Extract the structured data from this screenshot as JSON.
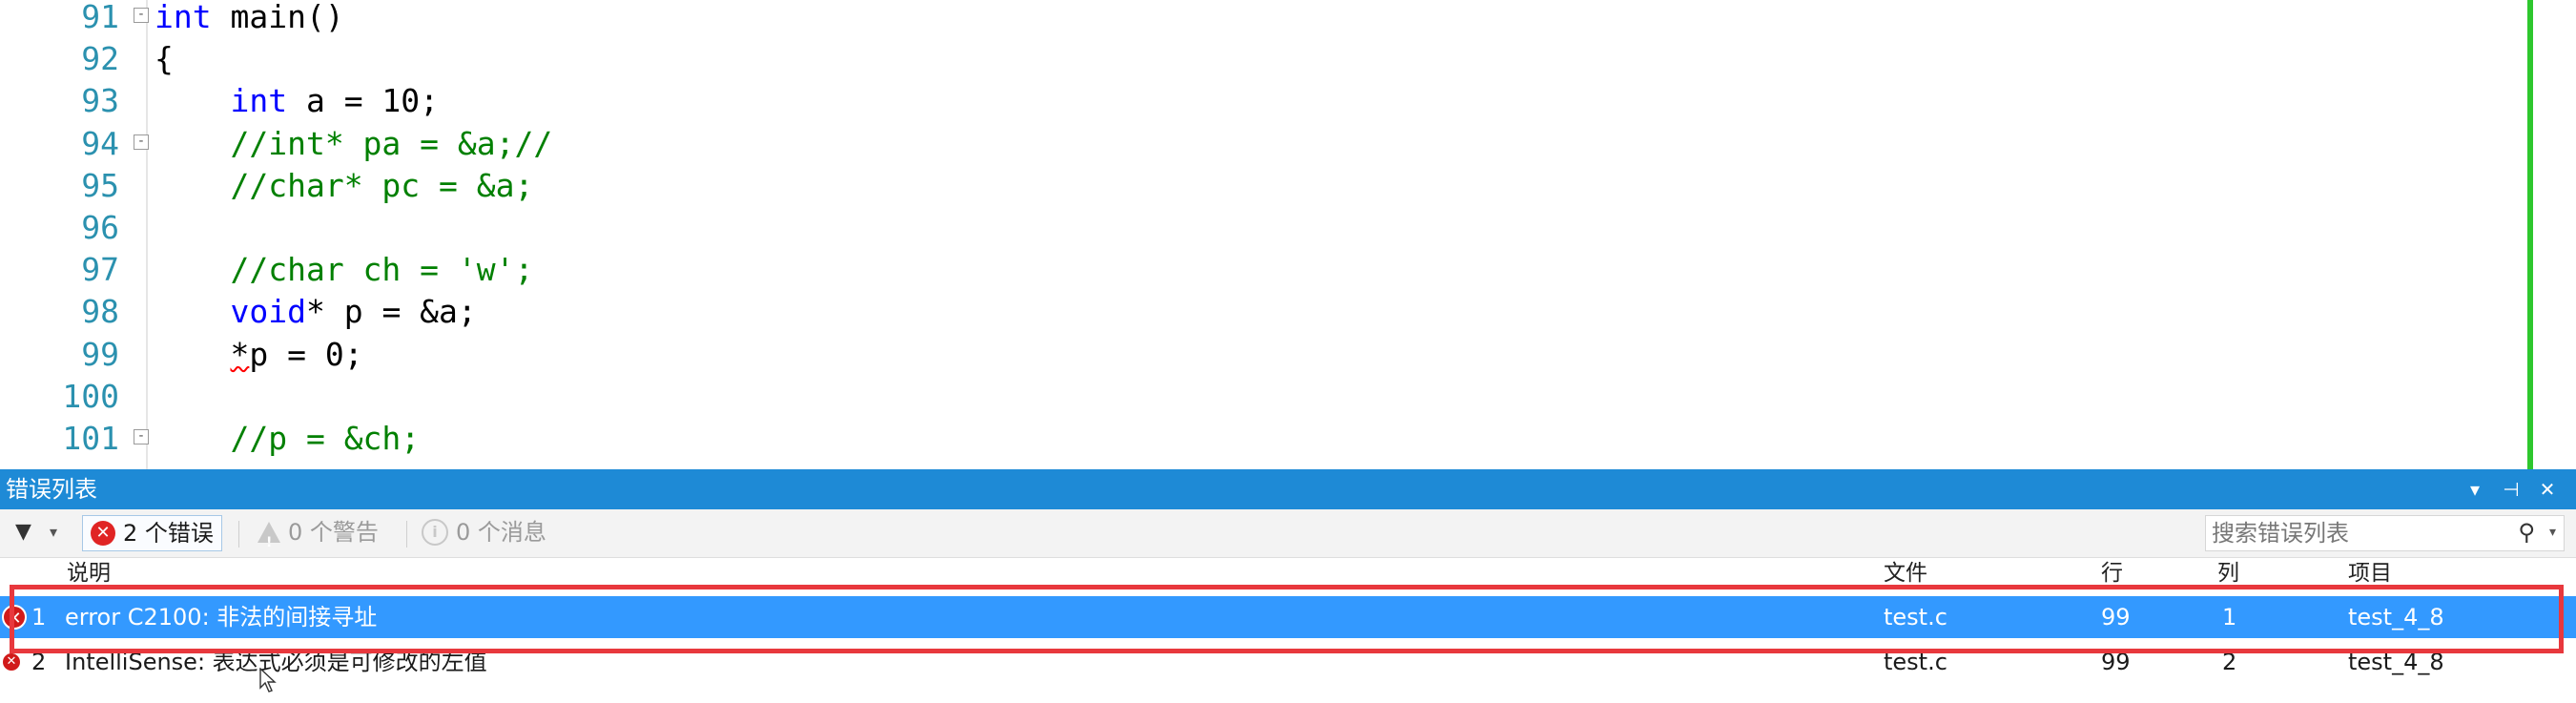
{
  "editor": {
    "lines": [
      {
        "n": "91",
        "fold": "-",
        "parts": [
          {
            "t": "int",
            "c": "kw"
          },
          {
            "t": " main()",
            "c": ""
          }
        ]
      },
      {
        "n": "92",
        "fold": "",
        "parts": [
          {
            "t": "{",
            "c": ""
          }
        ]
      },
      {
        "n": "93",
        "fold": "",
        "parts": [
          {
            "t": "    ",
            "c": ""
          },
          {
            "t": "int",
            "c": "kw"
          },
          {
            "t": " a = 10;",
            "c": ""
          }
        ]
      },
      {
        "n": "94",
        "fold": "-",
        "parts": [
          {
            "t": "    ",
            "c": ""
          },
          {
            "t": "//int* pa = &a;//",
            "c": "cm"
          }
        ]
      },
      {
        "n": "95",
        "fold": "",
        "parts": [
          {
            "t": "    ",
            "c": ""
          },
          {
            "t": "//char* pc = &a;",
            "c": "cm"
          }
        ]
      },
      {
        "n": "96",
        "fold": "",
        "parts": []
      },
      {
        "n": "97",
        "fold": "",
        "parts": [
          {
            "t": "    ",
            "c": ""
          },
          {
            "t": "//char ch = 'w';",
            "c": "cm"
          }
        ]
      },
      {
        "n": "98",
        "fold": "",
        "parts": [
          {
            "t": "    ",
            "c": ""
          },
          {
            "t": "void",
            "c": "kw"
          },
          {
            "t": "* p = &a;",
            "c": ""
          }
        ]
      },
      {
        "n": "99",
        "fold": "",
        "parts": [
          {
            "t": "    ",
            "c": ""
          },
          {
            "t": "*",
            "c": "squiggle"
          },
          {
            "t": "p = 0;",
            "c": ""
          }
        ]
      },
      {
        "n": "100",
        "fold": "",
        "parts": []
      },
      {
        "n": "101",
        "fold": "-",
        "parts": [
          {
            "t": "    ",
            "c": ""
          },
          {
            "t": "//p = &ch;",
            "c": "cm"
          }
        ]
      }
    ]
  },
  "error_panel": {
    "title": "错误列表",
    "title_buttons": [
      "▾",
      "⊣",
      "✕"
    ],
    "toolbar": {
      "errors_label": "2 个错误",
      "warnings_label": "0 个警告",
      "messages_label": "0 个消息",
      "search_placeholder": "搜索错误列表"
    },
    "columns": {
      "description": "说明",
      "file": "文件",
      "line": "行",
      "column": "列",
      "project": "项目"
    },
    "rows": [
      {
        "num": "1",
        "description": "error C2100: 非法的间接寻址",
        "file": "test.c",
        "line": "99",
        "column": "1",
        "project": "test_4_8",
        "selected": true
      },
      {
        "num": "2",
        "description": "IntelliSense:  表达式必须是可修改的左值",
        "file": "test.c",
        "line": "99",
        "column": "2",
        "project": "test_4_8",
        "selected": false
      }
    ]
  },
  "colors": {
    "panel_title_bg": "#1e8ad6",
    "selection": "#3399ff",
    "highlight_box": "#e8383d",
    "keyword": "#0000ff",
    "comment": "#008000",
    "line_number": "#2b91af"
  }
}
